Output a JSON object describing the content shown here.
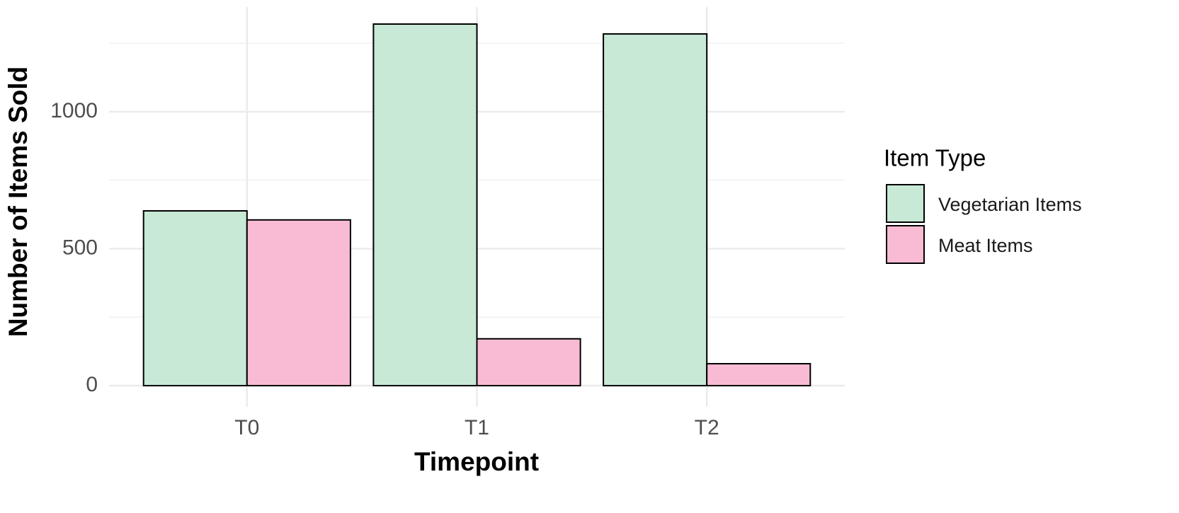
{
  "chart_data": {
    "type": "bar",
    "x_label": "Timepoint",
    "y_label": "Number of Items Sold",
    "legend_title": "Item Type",
    "categories": [
      "T0",
      "T1",
      "T2"
    ],
    "series": [
      {
        "name": "Vegetarian Items",
        "color": "#c7e9d6",
        "values": [
          638,
          1320,
          1284
        ]
      },
      {
        "name": "Meat Items",
        "color": "#f9bbd4",
        "values": [
          605,
          171,
          80
        ]
      }
    ],
    "ylim": [
      -77.5,
      1382
    ],
    "yticks": [
      0,
      500,
      1000
    ],
    "minor_yticks": [
      250,
      750,
      1250
    ],
    "grid": true,
    "legend": "right"
  }
}
